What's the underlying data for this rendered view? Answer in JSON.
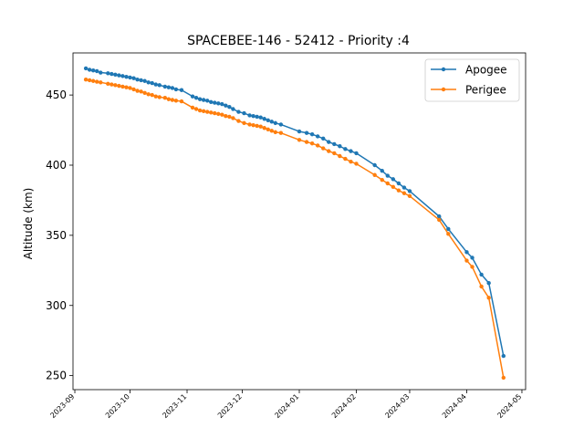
{
  "chart_data": {
    "type": "line",
    "title": "SPACEBEE-146 - 52412 - Priority :4",
    "xlabel": "",
    "ylabel": "Altitude (km)",
    "x_axis": {
      "kind": "date",
      "range": [
        "2023-08-31",
        "2024-05-03"
      ],
      "ticks": [
        "2023-09",
        "2023-10",
        "2023-11",
        "2023-12",
        "2024-01",
        "2024-02",
        "2024-03",
        "2024-04",
        "2024-05"
      ]
    },
    "y_axis": {
      "range": [
        240,
        480
      ],
      "ticks": [
        250,
        300,
        350,
        400,
        450
      ]
    },
    "grid": false,
    "legend": {
      "placement": "top-right",
      "entries": [
        "Apogee",
        "Perigee"
      ]
    },
    "series": [
      {
        "name": "Apogee",
        "color": "#1f77b4",
        "points": [
          [
            "2023-09-07",
            469
          ],
          [
            "2023-09-09",
            468
          ],
          [
            "2023-09-11",
            467.5
          ],
          [
            "2023-09-13",
            467
          ],
          [
            "2023-09-15",
            466
          ],
          [
            "2023-09-19",
            465.5
          ],
          [
            "2023-09-21",
            465
          ],
          [
            "2023-09-23",
            464.5
          ],
          [
            "2023-09-25",
            464
          ],
          [
            "2023-09-27",
            463.5
          ],
          [
            "2023-09-29",
            463
          ],
          [
            "2023-10-01",
            462.5
          ],
          [
            "2023-10-03",
            462
          ],
          [
            "2023-10-05",
            461
          ],
          [
            "2023-10-07",
            460.5
          ],
          [
            "2023-10-09",
            460
          ],
          [
            "2023-10-11",
            459
          ],
          [
            "2023-10-13",
            458.5
          ],
          [
            "2023-10-15",
            457.5
          ],
          [
            "2023-10-17",
            457
          ],
          [
            "2023-10-20",
            456
          ],
          [
            "2023-10-22",
            455.5
          ],
          [
            "2023-10-24",
            455
          ],
          [
            "2023-10-26",
            454
          ],
          [
            "2023-10-29",
            453.5
          ],
          [
            "2023-11-04",
            449
          ],
          [
            "2023-11-06",
            448
          ],
          [
            "2023-11-08",
            447
          ],
          [
            "2023-11-10",
            446.5
          ],
          [
            "2023-11-12",
            446
          ],
          [
            "2023-11-14",
            445
          ],
          [
            "2023-11-16",
            444.5
          ],
          [
            "2023-11-18",
            444
          ],
          [
            "2023-11-20",
            443.5
          ],
          [
            "2023-11-22",
            442.5
          ],
          [
            "2023-11-24",
            441.5
          ],
          [
            "2023-11-26",
            440
          ],
          [
            "2023-11-29",
            438
          ],
          [
            "2023-12-02",
            437
          ],
          [
            "2023-12-05",
            435.5
          ],
          [
            "2023-12-07",
            435
          ],
          [
            "2023-12-09",
            434.5
          ],
          [
            "2023-12-11",
            434
          ],
          [
            "2023-12-13",
            433
          ],
          [
            "2023-12-15",
            432
          ],
          [
            "2023-12-17",
            431
          ],
          [
            "2023-12-19",
            430
          ],
          [
            "2023-12-22",
            429
          ],
          [
            "2024-01-01",
            424
          ],
          [
            "2024-01-05",
            423
          ],
          [
            "2024-01-08",
            422
          ],
          [
            "2024-01-11",
            420.5
          ],
          [
            "2024-01-14",
            419
          ],
          [
            "2024-01-17",
            416.5
          ],
          [
            "2024-01-20",
            415
          ],
          [
            "2024-01-23",
            413.5
          ],
          [
            "2024-01-26",
            411.5
          ],
          [
            "2024-01-29",
            410
          ],
          [
            "2024-02-01",
            408.5
          ],
          [
            "2024-02-11",
            400
          ],
          [
            "2024-02-15",
            396
          ],
          [
            "2024-02-18",
            392.5
          ],
          [
            "2024-02-21",
            390
          ],
          [
            "2024-02-24",
            387
          ],
          [
            "2024-02-27",
            384
          ],
          [
            "2024-03-01",
            381.5
          ],
          [
            "2024-03-17",
            363.5
          ],
          [
            "2024-03-22",
            354.5
          ],
          [
            "2024-04-01",
            338
          ],
          [
            "2024-04-04",
            334
          ],
          [
            "2024-04-09",
            322
          ],
          [
            "2024-04-13",
            316
          ],
          [
            "2024-04-21",
            264
          ]
        ]
      },
      {
        "name": "Perigee",
        "color": "#ff7f0e",
        "points": [
          [
            "2023-09-07",
            461
          ],
          [
            "2023-09-09",
            460.5
          ],
          [
            "2023-09-11",
            460
          ],
          [
            "2023-09-13",
            459.5
          ],
          [
            "2023-09-15",
            459
          ],
          [
            "2023-09-19",
            458
          ],
          [
            "2023-09-21",
            457.5
          ],
          [
            "2023-09-23",
            457
          ],
          [
            "2023-09-25",
            456.5
          ],
          [
            "2023-09-27",
            456
          ],
          [
            "2023-09-29",
            455.5
          ],
          [
            "2023-10-01",
            455
          ],
          [
            "2023-10-03",
            454
          ],
          [
            "2023-10-05",
            453
          ],
          [
            "2023-10-07",
            452.5
          ],
          [
            "2023-10-09",
            451.5
          ],
          [
            "2023-10-11",
            450.5
          ],
          [
            "2023-10-13",
            450
          ],
          [
            "2023-10-15",
            449
          ],
          [
            "2023-10-17",
            448.5
          ],
          [
            "2023-10-20",
            448
          ],
          [
            "2023-10-22",
            447
          ],
          [
            "2023-10-24",
            446.5
          ],
          [
            "2023-10-26",
            446
          ],
          [
            "2023-10-29",
            445.5
          ],
          [
            "2023-11-04",
            441
          ],
          [
            "2023-11-06",
            440
          ],
          [
            "2023-11-08",
            439
          ],
          [
            "2023-11-10",
            438.5
          ],
          [
            "2023-11-12",
            438
          ],
          [
            "2023-11-14",
            437.5
          ],
          [
            "2023-11-16",
            437
          ],
          [
            "2023-11-18",
            436.5
          ],
          [
            "2023-11-20",
            436
          ],
          [
            "2023-11-22",
            435
          ],
          [
            "2023-11-24",
            434.5
          ],
          [
            "2023-11-26",
            433.5
          ],
          [
            "2023-11-29",
            431.5
          ],
          [
            "2023-12-02",
            430
          ],
          [
            "2023-12-05",
            429
          ],
          [
            "2023-12-07",
            428.5
          ],
          [
            "2023-12-09",
            428
          ],
          [
            "2023-12-11",
            427.5
          ],
          [
            "2023-12-13",
            426.5
          ],
          [
            "2023-12-15",
            425.5
          ],
          [
            "2023-12-17",
            424.5
          ],
          [
            "2023-12-19",
            423.5
          ],
          [
            "2023-12-22",
            423
          ],
          [
            "2024-01-01",
            418
          ],
          [
            "2024-01-05",
            416.5
          ],
          [
            "2024-01-08",
            415.5
          ],
          [
            "2024-01-11",
            414
          ],
          [
            "2024-01-14",
            412
          ],
          [
            "2024-01-17",
            410
          ],
          [
            "2024-01-20",
            408.5
          ],
          [
            "2024-01-23",
            406.5
          ],
          [
            "2024-01-26",
            404.5
          ],
          [
            "2024-01-29",
            402.5
          ],
          [
            "2024-02-01",
            401
          ],
          [
            "2024-02-11",
            393
          ],
          [
            "2024-02-15",
            389.5
          ],
          [
            "2024-02-18",
            387
          ],
          [
            "2024-02-21",
            384.5
          ],
          [
            "2024-02-24",
            382
          ],
          [
            "2024-02-27",
            380
          ],
          [
            "2024-03-01",
            378
          ],
          [
            "2024-03-17",
            361
          ],
          [
            "2024-03-22",
            351
          ],
          [
            "2024-04-01",
            332
          ],
          [
            "2024-04-04",
            327.5
          ],
          [
            "2024-04-09",
            313.5
          ],
          [
            "2024-04-13",
            305.5
          ],
          [
            "2024-04-21",
            248.5
          ]
        ]
      }
    ]
  }
}
